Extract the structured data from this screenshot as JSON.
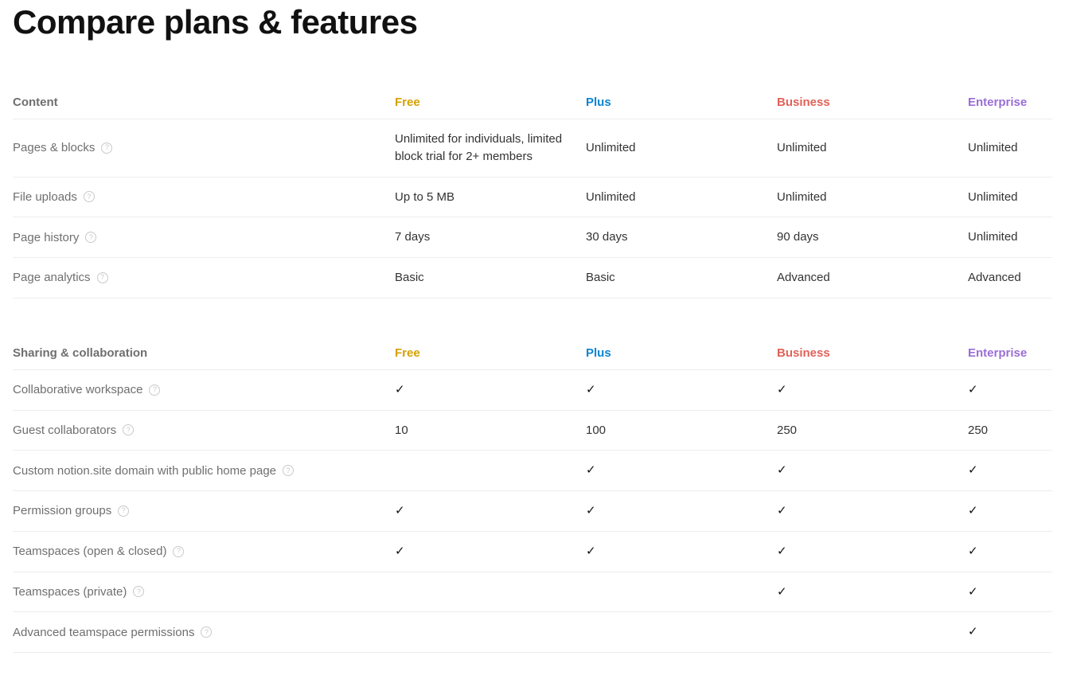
{
  "title": "Compare plans & features",
  "plan_colors": {
    "free": "#d6a000",
    "plus": "#0a85d1",
    "business": "#e16259",
    "enterprise": "#9a6dd7"
  },
  "plan_headers": {
    "free": "Free",
    "plus": "Plus",
    "business": "Business",
    "enterprise": "Enterprise"
  },
  "checkmark": "✓",
  "sections": [
    {
      "name": "Content",
      "rows": [
        {
          "label": "Pages & blocks",
          "help": true,
          "free": "Unlimited for individuals, limited block trial for 2+ members",
          "plus": "Unlimited",
          "business": "Unlimited",
          "enterprise": "Unlimited"
        },
        {
          "label": "File uploads",
          "help": true,
          "free": "Up to 5 MB",
          "plus": "Unlimited",
          "business": "Unlimited",
          "enterprise": "Unlimited"
        },
        {
          "label": "Page history",
          "help": true,
          "free": "7 days",
          "plus": "30 days",
          "business": "90 days",
          "enterprise": "Unlimited"
        },
        {
          "label": "Page analytics",
          "help": true,
          "free": "Basic",
          "plus": "Basic",
          "business": "Advanced",
          "enterprise": "Advanced"
        }
      ]
    },
    {
      "name": "Sharing & collaboration",
      "rows": [
        {
          "label": "Collaborative workspace",
          "help": true,
          "free": "check",
          "plus": "check",
          "business": "check",
          "enterprise": "check"
        },
        {
          "label": "Guest collaborators",
          "help": true,
          "free": "10",
          "plus": "100",
          "business": "250",
          "enterprise": "250"
        },
        {
          "label": "Custom notion.site domain with public home page",
          "help": true,
          "free": "",
          "plus": "check",
          "business": "check",
          "enterprise": "check"
        },
        {
          "label": "Permission groups",
          "help": true,
          "free": "check",
          "plus": "check",
          "business": "check",
          "enterprise": "check"
        },
        {
          "label": "Teamspaces (open & closed)",
          "help": true,
          "free": "check",
          "plus": "check",
          "business": "check",
          "enterprise": "check"
        },
        {
          "label": "Teamspaces (private)",
          "help": true,
          "free": "",
          "plus": "",
          "business": "check",
          "enterprise": "check"
        },
        {
          "label": "Advanced teamspace permissions",
          "help": true,
          "free": "",
          "plus": "",
          "business": "",
          "enterprise": "check"
        }
      ]
    }
  ]
}
